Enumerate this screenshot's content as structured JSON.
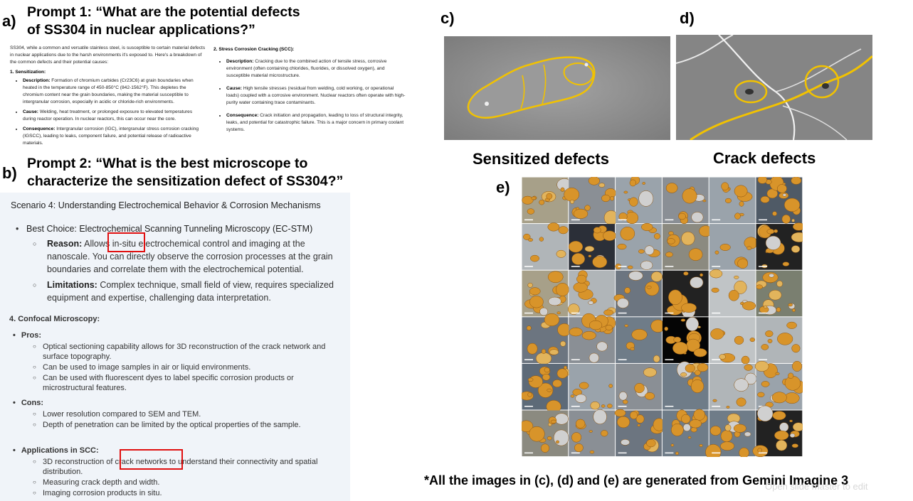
{
  "panel_a": {
    "letter": "a)",
    "prompt": "Prompt 1: “What are the potential defects of SS304 in nuclear applications?”",
    "prompt_line1": "Prompt 1: “What are the potential defects",
    "prompt_line2": "of SS304 in nuclear applications?”",
    "intro": "SS304, while a common and versatile stainless steel, is susceptible to certain material defects in nuclear applications due to the harsh environments it's exposed to. Here's a breakdown of the common defects and their potential causes:",
    "sec1_title": "1. Sensitization:",
    "sec1_items": [
      {
        "label": "Description:",
        "text": " Formation of chromium carbides (Cr23C6) at grain boundaries when heated in the temperature range of 450-850°C (842-1562°F). This depletes the chromium content near the grain boundaries, making the material susceptible to intergranular corrosion, especially in acidic or chloride-rich environments."
      },
      {
        "label": "Cause:",
        "text": " Welding, heat treatment, or prolonged exposure to elevated temperatures during reactor operation. In nuclear reactors, this can occur near the core."
      },
      {
        "label": "Consequence:",
        "text": " Intergranular corrosion (IGC), intergranular stress corrosion cracking (IGSCC), leading to leaks, component failure, and potential release of radioactive materials."
      }
    ],
    "sec2_title": "2. Stress Corrosion Cracking (SCC):",
    "sec2_items": [
      {
        "label": "Description:",
        "text": " Cracking due to the combined action of tensile stress, corrosive environment (often containing chlorides, fluorides, or dissolved oxygen), and susceptible material microstructure."
      },
      {
        "label": "Cause:",
        "text": " High tensile stresses (residual from welding, cold working, or operational loads) coupled with a corrosive environment. Nuclear reactors often operate with high-purity water containing trace contaminants."
      },
      {
        "label": "Consequence:",
        "text": " Crack initiation and propagation, leading to loss of structural integrity, leaks, and potential for catastrophic failure. This is a major concern in primary coolant systems."
      }
    ]
  },
  "panel_b": {
    "letter": "b)",
    "prompt_line1": "Prompt 2: “What is the best microscope to",
    "prompt_line2": "characterize the sensitization defect of SS304?”",
    "scenario": "Scenario 4: Understanding Electrochemical Behavior & Corrosion Mechanisms",
    "best_choice": "Best Choice: Electrochemical Scanning Tunneling Microscopy (EC-STM)",
    "reason_label": "Reason:",
    "reason_text": " Allows in-situ electrochemical control and imaging at the nanoscale. You can directly observe the corrosion processes at the grain boundaries and correlate them with the electrochemical potential.",
    "limitations_label": "Limitations:",
    "limitations_text": " Complex technique, small field of view, requires specialized equipment and expertise, challenging data interpretation.",
    "confocal_title": "4. Confocal Microscopy:",
    "pros_label": "Pros:",
    "pros": [
      "Optical sectioning capability allows for 3D reconstruction of the crack network and surface topography.",
      "Can be used to image samples in air or liquid environments.",
      "Can be used with fluorescent dyes to label specific corrosion products or microstructural features."
    ],
    "cons_label": "Cons:",
    "cons": [
      "Lower resolution compared to SEM and TEM.",
      "Depth of penetration can be limited by the optical properties of the sample."
    ],
    "applications_label": "Applications in SCC:",
    "applications": [
      "3D reconstruction of crack networks to understand their connectivity and spatial distribution.",
      "Measuring crack depth and width.",
      "Imaging corrosion products in situ."
    ]
  },
  "panel_c": {
    "letter": "c)",
    "caption": "Sensitized defects"
  },
  "panel_d": {
    "letter": "d)",
    "caption": "Crack defects"
  },
  "panel_e": {
    "letter": "e)"
  },
  "footnote": "*All the images in (c), (d) and (e) are generated from Gemini Imagine 3",
  "watermark": "Open slide master to edit",
  "colors": {
    "highlight_box": "#e01010",
    "defect_outline": "#f2c200",
    "panel_b_bg": "#f0f4f9",
    "sem_gray": "#8a8a8a"
  }
}
